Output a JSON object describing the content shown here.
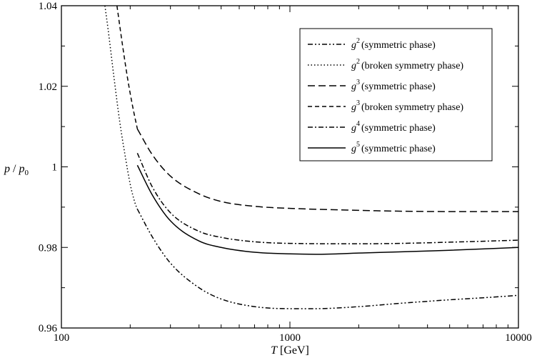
{
  "chart_data": {
    "type": "line",
    "xlabel": {
      "var": "T",
      "unit": "[GeV]"
    },
    "ylabel": {
      "var": "p",
      "sep": " / ",
      "var2": "p",
      "sub": "0"
    },
    "xscale": "log",
    "xlim": [
      100,
      10000
    ],
    "ylim": [
      0.96,
      1.04
    ],
    "x_ticks": [
      100,
      1000,
      10000
    ],
    "x_tick_labels": [
      "100",
      "1000",
      "10000"
    ],
    "y_ticks": [
      0.96,
      0.98,
      1,
      1.02,
      1.04
    ],
    "y_tick_labels": [
      "0.96",
      "0.98",
      "1",
      "1.02",
      "1.04"
    ],
    "grid": false,
    "legend_position": "top-right",
    "series": [
      {
        "name": "(symmetric phase)",
        "order": "2",
        "dash": "dash-dot-dot",
        "x": [
          215,
          250,
          300,
          400,
          500,
          700,
          1000,
          1300,
          2000,
          3000,
          5000,
          7000,
          10000
        ],
        "y": [
          0.9895,
          0.9826,
          0.9761,
          0.97,
          0.9672,
          0.9653,
          0.9648,
          0.9648,
          0.9653,
          0.9661,
          0.967,
          0.9675,
          0.9681
        ]
      },
      {
        "name": "(broken symmetry phase)",
        "order": "2",
        "dash": "dotted",
        "x": [
          155,
          160,
          170,
          180,
          190,
          200,
          210,
          215
        ],
        "y": [
          1.04,
          1.0342,
          1.022,
          1.0112,
          1.0028,
          0.9957,
          0.991,
          0.9895
        ]
      },
      {
        "name": "(symmetric phase)",
        "order": "3",
        "dash": "long-dash",
        "x": [
          215,
          250,
          300,
          400,
          500,
          700,
          1000,
          2000,
          3000,
          5000,
          10000
        ],
        "y": [
          1.0094,
          1.003,
          0.9977,
          0.9933,
          0.9914,
          0.9902,
          0.9897,
          0.9892,
          0.989,
          0.9889,
          0.9889
        ]
      },
      {
        "name": "(broken symmetry phase)",
        "order": "3",
        "dash": "dash",
        "x": [
          175,
          185,
          195,
          205,
          215
        ],
        "y": [
          1.04,
          1.0303,
          1.0218,
          1.015,
          1.0094
        ]
      },
      {
        "name": "(symmetric phase)",
        "order": "4",
        "dash": "dash-dot",
        "x": [
          215,
          250,
          300,
          400,
          500,
          700,
          1000,
          2000,
          3000,
          5000,
          10000
        ],
        "y": [
          1.0034,
          0.995,
          0.9886,
          0.984,
          0.9825,
          0.9814,
          0.981,
          0.9809,
          0.981,
          0.9813,
          0.9818
        ]
      },
      {
        "name": "(symmetric phase)",
        "order": "5",
        "dash": "solid",
        "x": [
          215,
          250,
          300,
          400,
          500,
          700,
          1000,
          1300,
          2000,
          3000,
          5000,
          10000
        ],
        "y": [
          1.0004,
          0.993,
          0.9866,
          0.9816,
          0.98,
          0.9788,
          0.9784,
          0.9783,
          0.9786,
          0.9789,
          0.9793,
          0.98
        ]
      }
    ]
  }
}
